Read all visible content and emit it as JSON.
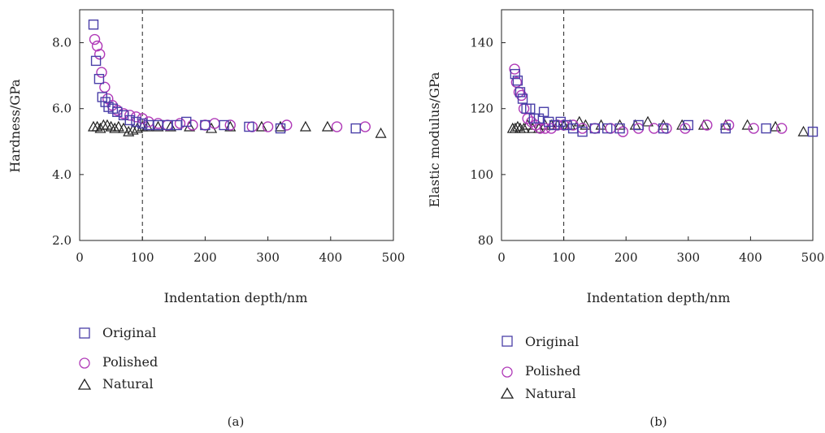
{
  "colors": {
    "original": "#4a3fa8",
    "polished": "#b03ab8",
    "natural": "#222222"
  },
  "chart_data": [
    {
      "type": "scatter",
      "panel_label": "(a)",
      "xlabel": "Indentation depth/nm",
      "ylabel": "Hardness/GPa",
      "xlim": [
        0,
        500
      ],
      "ylim": [
        2.0,
        9.0
      ],
      "xticks": [
        0,
        100,
        200,
        300,
        400,
        500
      ],
      "xtick_labels": [
        "0",
        "100",
        "200",
        "300",
        "400",
        "500"
      ],
      "yticks": [
        2.0,
        4.0,
        6.0,
        8.0
      ],
      "ytick_labels": [
        "2.0",
        "4.0",
        "6.0",
        "8.0"
      ],
      "vline_x": 100,
      "series": [
        {
          "name": "Original",
          "marker": "square",
          "x": [
            22,
            26,
            31,
            36,
            41,
            46,
            53,
            60,
            70,
            80,
            90,
            100,
            110,
            125,
            140,
            155,
            170,
            200,
            230,
            270,
            320,
            440
          ],
          "y": [
            8.55,
            7.45,
            6.9,
            6.35,
            6.2,
            6.05,
            6.0,
            5.9,
            5.8,
            5.65,
            5.6,
            5.55,
            5.5,
            5.5,
            5.5,
            5.5,
            5.6,
            5.5,
            5.5,
            5.45,
            5.4,
            5.4
          ]
        },
        {
          "name": "Polished",
          "marker": "circle",
          "x": [
            24,
            28,
            32,
            35,
            40,
            45,
            52,
            60,
            70,
            80,
            90,
            100,
            110,
            125,
            140,
            160,
            180,
            200,
            215,
            240,
            275,
            300,
            330,
            410,
            455
          ],
          "y": [
            8.1,
            7.9,
            7.65,
            7.1,
            6.65,
            6.3,
            6.1,
            5.95,
            5.85,
            5.8,
            5.75,
            5.7,
            5.6,
            5.55,
            5.5,
            5.55,
            5.5,
            5.5,
            5.55,
            5.5,
            5.45,
            5.45,
            5.5,
            5.45,
            5.45
          ]
        },
        {
          "name": "Natural",
          "marker": "triangle",
          "x": [
            22,
            28,
            33,
            38,
            44,
            50,
            56,
            62,
            70,
            78,
            85,
            92,
            100,
            108,
            125,
            145,
            175,
            210,
            240,
            290,
            320,
            360,
            395,
            480
          ],
          "y": [
            5.45,
            5.45,
            5.4,
            5.5,
            5.5,
            5.45,
            5.4,
            5.45,
            5.4,
            5.3,
            5.35,
            5.4,
            5.45,
            5.45,
            5.45,
            5.45,
            5.45,
            5.4,
            5.45,
            5.45,
            5.45,
            5.45,
            5.45,
            5.25
          ]
        }
      ]
    },
    {
      "type": "scatter",
      "panel_label": "(b)",
      "xlabel": "Indentation depth/nm",
      "ylabel": "Elastic modulus/GPa",
      "xlim": [
        0,
        500
      ],
      "ylim": [
        80,
        150
      ],
      "xticks": [
        0,
        100,
        200,
        300,
        400,
        500
      ],
      "xtick_labels": [
        "0",
        "100",
        "200",
        "300",
        "400",
        "500"
      ],
      "yticks": [
        80,
        100,
        120,
        140
      ],
      "ytick_labels": [
        "80",
        "100",
        "120",
        "140"
      ],
      "vline_x": 100,
      "series": [
        {
          "name": "Original",
          "marker": "square",
          "x": [
            22,
            26,
            30,
            34,
            40,
            46,
            52,
            60,
            68,
            76,
            85,
            95,
            105,
            115,
            130,
            150,
            170,
            190,
            220,
            260,
            300,
            360,
            425,
            500
          ],
          "y": [
            130.5,
            128.5,
            125,
            123,
            120,
            120,
            117,
            117,
            119,
            116,
            115,
            116,
            115,
            114,
            113,
            114,
            114,
            114,
            115,
            114,
            115,
            114,
            114,
            113
          ]
        },
        {
          "name": "Polished",
          "marker": "circle",
          "x": [
            21,
            24,
            28,
            32,
            36,
            42,
            48,
            55,
            62,
            70,
            80,
            90,
            100,
            115,
            130,
            150,
            175,
            195,
            220,
            245,
            265,
            295,
            330,
            365,
            405,
            450
          ],
          "y": [
            132,
            128,
            125,
            124,
            120,
            117,
            116,
            115,
            114,
            114,
            114,
            115,
            115,
            115,
            114,
            114,
            114,
            113,
            114,
            114,
            114,
            114,
            115,
            115,
            114,
            114
          ]
        },
        {
          "name": "Natural",
          "marker": "triangle",
          "x": [
            18,
            22,
            26,
            30,
            36,
            42,
            50,
            60,
            70,
            80,
            90,
            100,
            110,
            125,
            135,
            160,
            190,
            215,
            235,
            260,
            290,
            325,
            360,
            395,
            440,
            485
          ],
          "y": [
            114,
            114,
            114.5,
            114,
            114,
            115,
            114,
            114,
            115,
            115,
            115,
            115,
            115,
            116,
            115,
            115,
            115,
            115,
            116,
            115,
            115,
            115,
            115,
            115,
            114.5,
            113
          ]
        }
      ]
    }
  ]
}
